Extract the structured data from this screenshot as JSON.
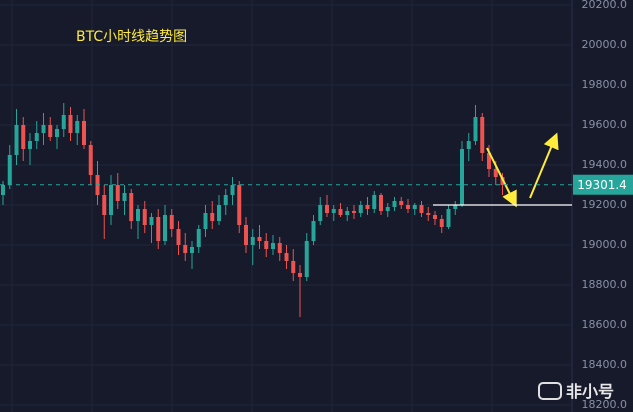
{
  "chart_data": {
    "type": "candlestick",
    "title": "BTC小时线趋势图",
    "up_color": "#26a69a",
    "down_color": "#ef5350",
    "grid": true,
    "ylim": [
      18200,
      20200
    ],
    "yticks": [
      {
        "value": 18200,
        "label": "18200.0"
      },
      {
        "value": 18400,
        "label": "18400.0"
      },
      {
        "value": 18600,
        "label": "18600.0"
      },
      {
        "value": 18800,
        "label": "18800.0"
      },
      {
        "value": 19000,
        "label": "19000.0"
      },
      {
        "value": 19200,
        "label": "19200.0"
      },
      {
        "value": 19400,
        "label": "19400.0"
      },
      {
        "value": 19600,
        "label": "19600.0"
      },
      {
        "value": 19800,
        "label": "19800.0"
      },
      {
        "value": 20000,
        "label": "20000.0"
      },
      {
        "value": 20200,
        "label": "20200.0"
      }
    ],
    "last_price": 19301.4,
    "reference_line": 19200,
    "watermark": "非小号",
    "values": [
      [
        19250,
        19320,
        19200,
        19300
      ],
      [
        19300,
        19500,
        19280,
        19450
      ],
      [
        19450,
        19680,
        19400,
        19600
      ],
      [
        19600,
        19640,
        19420,
        19480
      ],
      [
        19480,
        19560,
        19400,
        19520
      ],
      [
        19520,
        19620,
        19480,
        19560
      ],
      [
        19560,
        19660,
        19500,
        19600
      ],
      [
        19600,
        19640,
        19520,
        19540
      ],
      [
        19540,
        19600,
        19480,
        19580
      ],
      [
        19580,
        19710,
        19540,
        19650
      ],
      [
        19650,
        19690,
        19520,
        19560
      ],
      [
        19560,
        19650,
        19500,
        19620
      ],
      [
        19620,
        19680,
        19480,
        19500
      ],
      [
        19500,
        19520,
        19300,
        19350
      ],
      [
        19350,
        19420,
        19200,
        19250
      ],
      [
        19250,
        19300,
        19030,
        19150
      ],
      [
        19150,
        19350,
        19100,
        19300
      ],
      [
        19300,
        19360,
        19180,
        19220
      ],
      [
        19220,
        19300,
        19150,
        19260
      ],
      [
        19260,
        19280,
        19080,
        19120
      ],
      [
        19120,
        19200,
        19030,
        19180
      ],
      [
        19180,
        19220,
        19060,
        19100
      ],
      [
        19100,
        19160,
        19010,
        19140
      ],
      [
        19140,
        19180,
        18980,
        19020
      ],
      [
        19020,
        19200,
        19000,
        19150
      ],
      [
        19150,
        19180,
        19040,
        19080
      ],
      [
        19080,
        19120,
        18950,
        19000
      ],
      [
        19000,
        19060,
        18920,
        18960
      ],
      [
        18960,
        19020,
        18880,
        18990
      ],
      [
        18990,
        19100,
        18960,
        19080
      ],
      [
        19080,
        19200,
        19040,
        19160
      ],
      [
        19160,
        19220,
        19080,
        19120
      ],
      [
        19120,
        19250,
        19100,
        19200
      ],
      [
        19200,
        19280,
        19150,
        19250
      ],
      [
        19250,
        19340,
        19200,
        19300
      ],
      [
        19300,
        19320,
        19060,
        19100
      ],
      [
        19100,
        19140,
        18960,
        19000
      ],
      [
        19000,
        19080,
        18900,
        19040
      ],
      [
        19040,
        19100,
        18980,
        19020
      ],
      [
        19020,
        19060,
        18940,
        18980
      ],
      [
        18980,
        19050,
        18950,
        19010
      ],
      [
        19010,
        19040,
        18920,
        18960
      ],
      [
        18960,
        19000,
        18880,
        18920
      ],
      [
        18920,
        18980,
        18820,
        18860
      ],
      [
        18860,
        18900,
        18640,
        18840
      ],
      [
        18840,
        19060,
        18820,
        19020
      ],
      [
        19020,
        19150,
        19000,
        19120
      ],
      [
        19120,
        19240,
        19100,
        19200
      ],
      [
        19200,
        19250,
        19140,
        19160
      ],
      [
        19160,
        19200,
        19120,
        19180
      ],
      [
        19180,
        19210,
        19140,
        19150
      ],
      [
        19150,
        19190,
        19120,
        19170
      ],
      [
        19170,
        19200,
        19130,
        19160
      ],
      [
        19160,
        19220,
        19140,
        19200
      ],
      [
        19200,
        19240,
        19150,
        19180
      ],
      [
        19180,
        19270,
        19160,
        19250
      ],
      [
        19250,
        19260,
        19150,
        19170
      ],
      [
        19170,
        19210,
        19140,
        19190
      ],
      [
        19190,
        19240,
        19170,
        19220
      ],
      [
        19220,
        19240,
        19180,
        19200
      ],
      [
        19200,
        19230,
        19160,
        19180
      ],
      [
        19180,
        19210,
        19150,
        19200
      ],
      [
        19200,
        19220,
        19140,
        19160
      ],
      [
        19160,
        19190,
        19120,
        19150
      ],
      [
        19150,
        19170,
        19100,
        19130
      ],
      [
        19130,
        19150,
        19060,
        19090
      ],
      [
        19090,
        19200,
        19080,
        19180
      ],
      [
        19180,
        19220,
        19150,
        19200
      ],
      [
        19200,
        19520,
        19190,
        19480
      ],
      [
        19480,
        19560,
        19420,
        19520
      ],
      [
        19520,
        19700,
        19500,
        19640
      ],
      [
        19640,
        19660,
        19420,
        19460
      ],
      [
        19460,
        19500,
        19340,
        19380
      ],
      [
        19380,
        19420,
        19300,
        19340
      ],
      [
        19340,
        19360,
        19250,
        19300
      ]
    ]
  }
}
